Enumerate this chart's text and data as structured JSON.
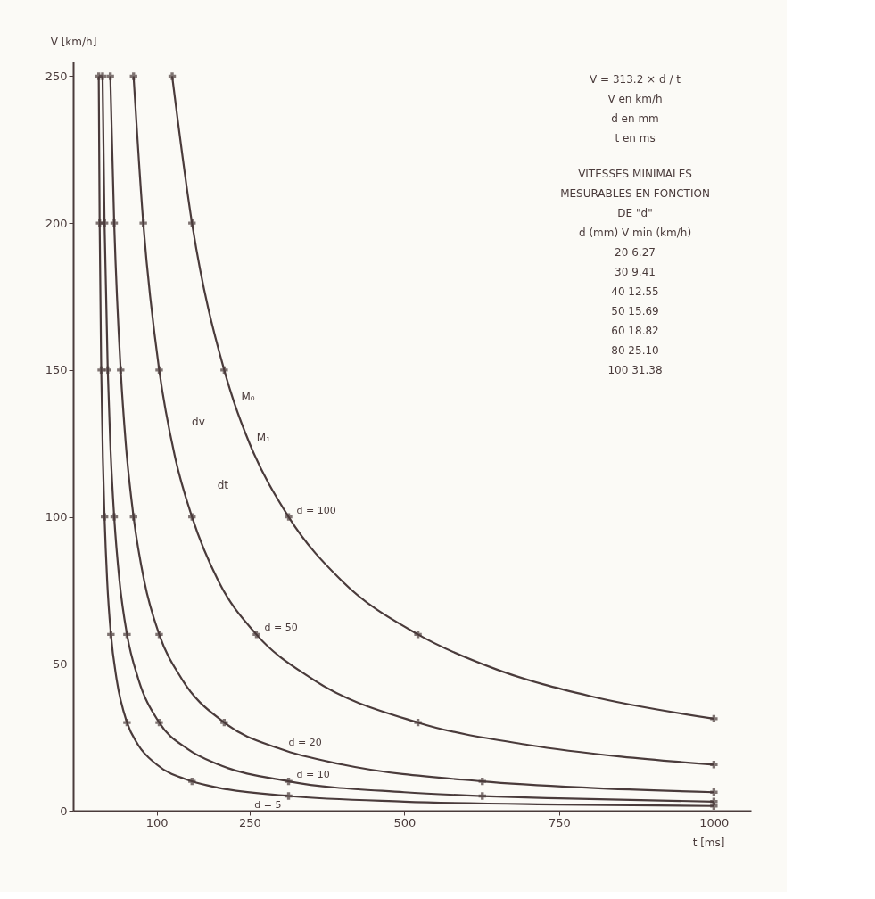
{
  "chart_data": {
    "type": "line",
    "xlabel": "t [ms]",
    "ylabel": "V [km/h]",
    "xlim": [
      -35,
      1060
    ],
    "ylim": [
      0,
      255
    ],
    "xticks": [
      100,
      250,
      500,
      750,
      1000
    ],
    "yticks": [
      0,
      50,
      100,
      150,
      200,
      250
    ],
    "grid": false,
    "line_style": "solid",
    "marker": "none",
    "series": [
      {
        "name": "d = 5",
        "color": "#4a3b3b",
        "x": [
          6.3,
          7.8,
          10.4,
          13,
          15.7,
          20,
          26,
          35,
          52,
          70,
          100,
          157,
          200,
          313,
          500,
          750,
          1000
        ],
        "values": [
          250,
          200,
          150,
          120,
          100,
          78,
          60,
          45,
          30,
          22.4,
          15.7,
          10,
          7.8,
          5,
          3.1,
          2.1,
          1.6
        ]
      },
      {
        "name": "d = 10",
        "color": "#4a3b3b",
        "x": [
          12.5,
          15.7,
          20.9,
          25,
          31.3,
          40,
          52,
          70,
          104,
          150,
          200,
          313,
          500,
          626,
          750,
          1000
        ],
        "values": [
          250,
          200,
          150,
          125,
          100,
          78,
          60,
          45,
          30,
          21,
          15.7,
          10,
          6.3,
          5,
          4.2,
          3.1
        ]
      },
      {
        "name": "d = 20",
        "color": "#4a3b3b",
        "x": [
          25,
          31.3,
          41.8,
          50,
          62.6,
          80,
          104,
          140,
          209,
          300,
          400,
          626,
          800,
          1000
        ],
        "values": [
          250,
          200,
          150,
          125,
          100,
          78,
          60,
          45,
          30,
          21,
          15.7,
          10,
          7.8,
          6.3
        ]
      },
      {
        "name": "d = 50",
        "color": "#4a3b3b",
        "x": [
          62.6,
          78.3,
          104,
          130,
          157,
          200,
          261,
          350,
          522,
          700,
          850,
          1000
        ],
        "values": [
          250,
          200,
          150,
          120,
          100,
          78,
          60,
          45,
          30,
          22.4,
          18.4,
          15.7
        ]
      },
      {
        "name": "d = 100",
        "color": "#4a3b3b",
        "x": [
          125,
          157,
          209,
          225,
          250,
          313,
          400,
          522,
          650,
          800,
          1000
        ],
        "values": [
          250,
          200,
          150,
          139,
          125,
          100,
          78,
          60,
          48,
          39,
          31.3
        ]
      },
      {
        "type": "scatter",
        "marker": "cross",
        "color": "#4a3b3b",
        "x": [
          6.3,
          7.8,
          10.4,
          15.7,
          26,
          52,
          157,
          313,
          1000,
          12.5,
          15.7,
          20.9,
          31.3,
          52,
          104,
          313,
          626,
          1000,
          25,
          31.3,
          41.8,
          62.6,
          104,
          209,
          626,
          1000,
          62.6,
          78.3,
          104,
          157,
          261,
          522,
          1000,
          125,
          157,
          209,
          313,
          522,
          1000
        ],
        "values": [
          250,
          200,
          150,
          100,
          60,
          30,
          10,
          5,
          1.6,
          250,
          200,
          150,
          100,
          60,
          30,
          10,
          5,
          3.1,
          250,
          200,
          150,
          100,
          60,
          30,
          10,
          6.3,
          250,
          200,
          150,
          100,
          60,
          30,
          15.7,
          250,
          200,
          150,
          100,
          60,
          31.3
        ]
      }
    ],
    "annotations": [
      {
        "text": "M₀",
        "x": 225,
        "y": 139
      },
      {
        "text": "M₁",
        "x": 250,
        "y": 125
      },
      "dv",
      "dt",
      "V = 313.2 × d / t",
      "V en km/h",
      "d en mm",
      "t en ms",
      "VITESSES MINIMALES",
      "MESURABLES EN FONCTION",
      "DE \"d\"",
      "d (mm)   V min (km/h)",
      "20   6.27",
      "30   9.41",
      "40   12.55",
      "50   15.69",
      "60   18.82",
      "80   25.10",
      "100   31.38"
    ]
  }
}
